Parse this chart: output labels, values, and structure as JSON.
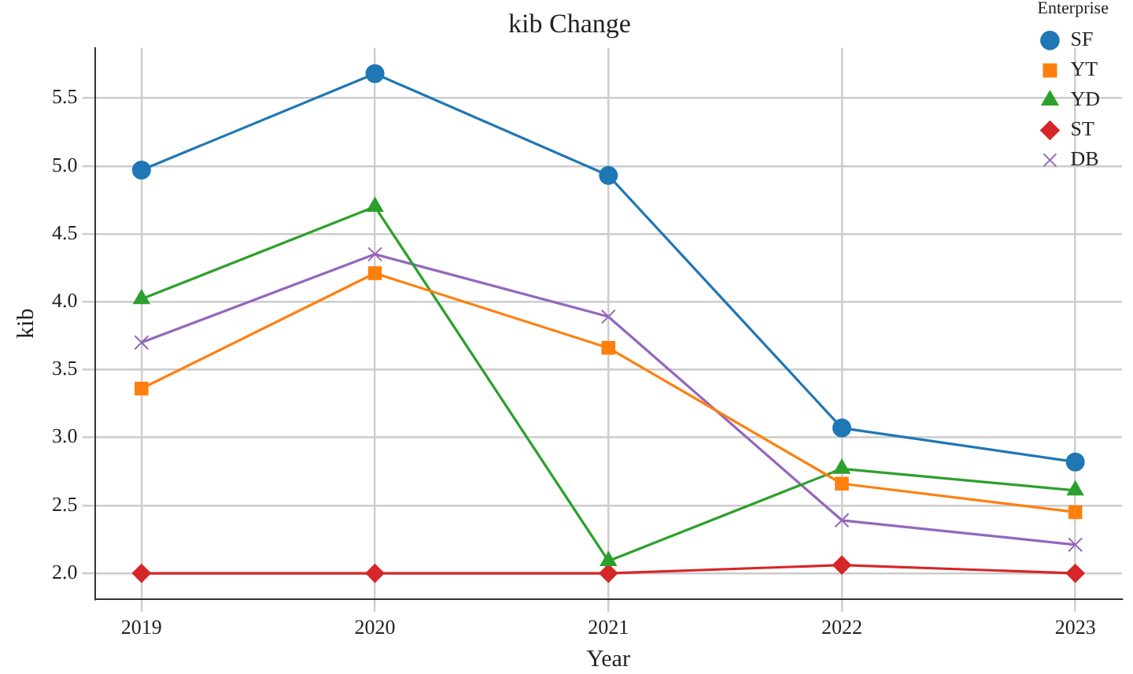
{
  "chart_data": {
    "type": "line",
    "title": "kib Change",
    "xlabel": "Year",
    "ylabel": "kib",
    "legend_title": "Enterprise",
    "legend": "top right",
    "grid": true,
    "x": [
      2019,
      2020,
      2021,
      2022,
      2023
    ],
    "xlim": [
      2018.8,
      2023.2
    ],
    "xticks": [
      2019,
      2020,
      2021,
      2022,
      2023
    ],
    "ylim": [
      1.81,
      5.87
    ],
    "yticks": [
      {
        "value": 2,
        "label": "2.0"
      },
      {
        "value": 2.5,
        "label": "2.5"
      },
      {
        "value": 3,
        "label": "3.0"
      },
      {
        "value": 3.5,
        "label": "3.5"
      },
      {
        "value": 4,
        "label": "4.0"
      },
      {
        "value": 4.5,
        "label": "4.5"
      },
      {
        "value": 5,
        "label": "5.0"
      },
      {
        "value": 5.5,
        "label": "5.5"
      }
    ],
    "series": [
      {
        "name": "SF",
        "color": "#1f77b4",
        "marker": "circle",
        "values": [
          4.97,
          5.68,
          4.93,
          3.07,
          2.82
        ]
      },
      {
        "name": "YT",
        "color": "#ff7f0e",
        "marker": "square",
        "values": [
          3.36,
          4.21,
          3.66,
          2.66,
          2.45
        ]
      },
      {
        "name": "YD",
        "color": "#2ca02c",
        "marker": "triangle",
        "values": [
          4.02,
          4.7,
          2.09,
          2.77,
          2.61
        ]
      },
      {
        "name": "ST",
        "color": "#d62728",
        "marker": "diamond",
        "values": [
          2.0,
          2.0,
          2.0,
          2.06,
          2.0
        ]
      },
      {
        "name": "DB",
        "color": "#9467bd",
        "marker": "cross",
        "values": [
          3.7,
          4.35,
          3.89,
          2.39,
          2.21
        ]
      }
    ]
  }
}
